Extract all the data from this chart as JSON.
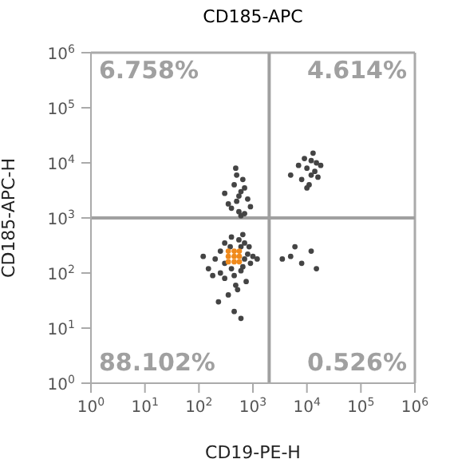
{
  "chart_data": {
    "type": "scatter",
    "title": "CD185-APC",
    "xlabel": "CD19-PE-H",
    "ylabel": "CD185-APC-H",
    "log": "xy",
    "grid": false,
    "legend": false,
    "marker": "circle",
    "xlim": [
      1,
      1000000
    ],
    "ylim": [
      1,
      1000000
    ],
    "xticks": [
      {
        "value": 1,
        "label": "10$^{0}$"
      },
      {
        "value": 10,
        "label": "10$^{1}$"
      },
      {
        "value": 100,
        "label": "10$^{2}$"
      },
      {
        "value": 1000,
        "label": "10$^{3}$"
      },
      {
        "value": 10000,
        "label": "10$^{4}$"
      },
      {
        "value": 100000,
        "label": "10$^{5}$"
      },
      {
        "value": 1000000,
        "label": "10$^{6}$"
      }
    ],
    "yticks": [
      {
        "value": 1,
        "label": "10$^{0}$"
      },
      {
        "value": 10,
        "label": "10$^{1}$"
      },
      {
        "value": 100,
        "label": "10$^{2}$"
      },
      {
        "value": 1000,
        "label": "10$^{3}$"
      },
      {
        "value": 10000,
        "label": "10$^{4}$"
      },
      {
        "value": 100000,
        "label": "10$^{5}$"
      },
      {
        "value": 1000000,
        "label": "10$^{6}$"
      }
    ],
    "ref_lines": [
      {
        "axis": "x",
        "value": 2000,
        "label": null,
        "color": "#a0a0a0"
      },
      {
        "axis": "y",
        "value": 1000,
        "label": null,
        "color": "#a0a0a0"
      }
    ],
    "annotations": [
      "6.758%",
      "4.614%",
      "88.102%",
      "0.526%"
    ],
    "series": [
      {
        "color": "#444444",
        "x": [
          300,
          400,
          600,
          700,
          250,
          450,
          800,
          550,
          200,
          650,
          380,
          900,
          150,
          480,
          300,
          700,
          600,
          250,
          1000,
          180,
          520,
          350,
          450,
          600,
          230,
          750,
          1200,
          120,
          400,
          650,
          300,
          850,
          400,
          500,
          600,
          700,
          450,
          550,
          650,
          350,
          800,
          500,
          600,
          700,
          300,
          900,
          480,
          550,
          8000,
          10000,
          12000,
          15000,
          9000,
          11000,
          14000,
          7000,
          13000,
          16000,
          10000,
          18000,
          5000,
          12000,
          5000,
          8000,
          12000,
          6000,
          15000,
          3500
        ],
        "values": [
          150,
          120,
          300,
          180,
          100,
          90,
          220,
          400,
          180,
          130,
          300,
          150,
          120,
          60,
          80,
          350,
          110,
          250,
          200,
          90,
          50,
          40,
          20,
          15,
          30,
          70,
          180,
          200,
          450,
          500,
          350,
          300,
          1500,
          2000,
          3000,
          1200,
          4000,
          2500,
          5000,
          1800,
          2200,
          6000,
          1100,
          3500,
          2800,
          1600,
          8000,
          1300,
          5000,
          8000,
          6000,
          10000,
          12000,
          4000,
          7000,
          9000,
          15000,
          5500,
          3500,
          9000,
          6000,
          11000,
          200,
          150,
          250,
          300,
          120,
          180
        ]
      },
      {
        "color": "#f08a1c",
        "x": [
          350,
          450,
          560,
          350,
          450,
          560,
          350,
          450,
          560
        ],
        "values": [
          160,
          160,
          160,
          200,
          200,
          200,
          250,
          250,
          250
        ]
      }
    ]
  }
}
